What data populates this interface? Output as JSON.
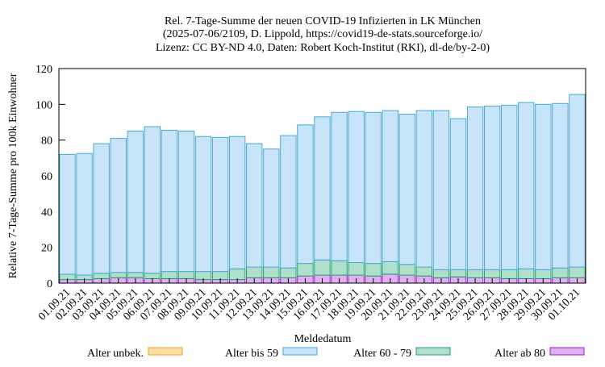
{
  "chart_data": {
    "type": "stacked_bar",
    "title": [
      "Rel. 7-Tage-Summe der neuen COVID-19 Infizierten in LK München",
      "(2025-07-06/2109, D. Lippold, https://covid19-de-stats.sourceforge.io/",
      "Lizenz: CC BY-ND 4.0, Daten: Robert Koch-Institut (RKI), dl-de/by-2-0)"
    ],
    "x_label": "Meldedatum",
    "y_label": "Relative 7-Tage-Summe pro 100k Einwohner",
    "categories": [
      "01.09.21",
      "02.09.21",
      "03.09.21",
      "04.09.21",
      "05.09.21",
      "06.09.21",
      "07.09.21",
      "08.09.21",
      "09.09.21",
      "10.09.21",
      "11.09.21",
      "12.09.21",
      "13.09.21",
      "14.09.21",
      "15.09.21",
      "16.09.21",
      "17.09.21",
      "18.09.21",
      "19.09.21",
      "20.09.21",
      "21.09.21",
      "22.09.21",
      "23.09.21",
      "24.09.21",
      "25.09.21",
      "26.09.21",
      "27.09.21",
      "28.09.21",
      "29.09.21",
      "30.09.21",
      "01.10.21"
    ],
    "series": [
      {
        "name": "Alter unbek.",
        "color": "#f9e0a0",
        "stroke": "#e8a020",
        "values": [
          0,
          0,
          0,
          0,
          0,
          0,
          0,
          0,
          0,
          0,
          0,
          0,
          0,
          0,
          0,
          0,
          0,
          0,
          0,
          0,
          0,
          0,
          0,
          0,
          0,
          0,
          0,
          0,
          0,
          0,
          0
        ]
      },
      {
        "name": "Alter bis 59",
        "color": "#c8e4f8",
        "stroke": "#4aa8d8",
        "values": [
          67,
          68,
          72.5,
          75,
          79,
          82,
          79,
          78.5,
          75.5,
          75,
          74,
          69,
          66,
          74,
          77.5,
          80,
          83,
          84.5,
          84.5,
          84.5,
          84,
          87.5,
          89,
          84.5,
          91,
          91.5,
          92,
          93,
          92.5,
          92,
          96.5
        ]
      },
      {
        "name": "Alter 60 - 79",
        "color": "#b0e0cc",
        "stroke": "#20a070",
        "values": [
          3,
          2.5,
          3,
          3,
          3,
          3,
          4,
          4,
          4.5,
          4.5,
          6,
          6,
          6,
          5.5,
          7,
          8.5,
          8,
          7,
          7,
          7,
          6,
          5,
          4.5,
          4,
          4.5,
          4.5,
          5,
          5.5,
          5,
          5.5,
          6
        ]
      },
      {
        "name": "Alter ab 80",
        "color": "#e0b0f0",
        "stroke": "#9020c0",
        "values": [
          2,
          2,
          2.5,
          3,
          3,
          2.5,
          2.5,
          2.5,
          2,
          2,
          2,
          3,
          3,
          3,
          4,
          4.5,
          4.5,
          4.5,
          4,
          5,
          4.5,
          4,
          3,
          3.5,
          3,
          3,
          2.5,
          2.5,
          2.5,
          3,
          3
        ]
      }
    ],
    "ylim": [
      0,
      120
    ],
    "yticks": [
      0,
      20,
      40,
      60,
      80,
      100,
      120
    ]
  }
}
